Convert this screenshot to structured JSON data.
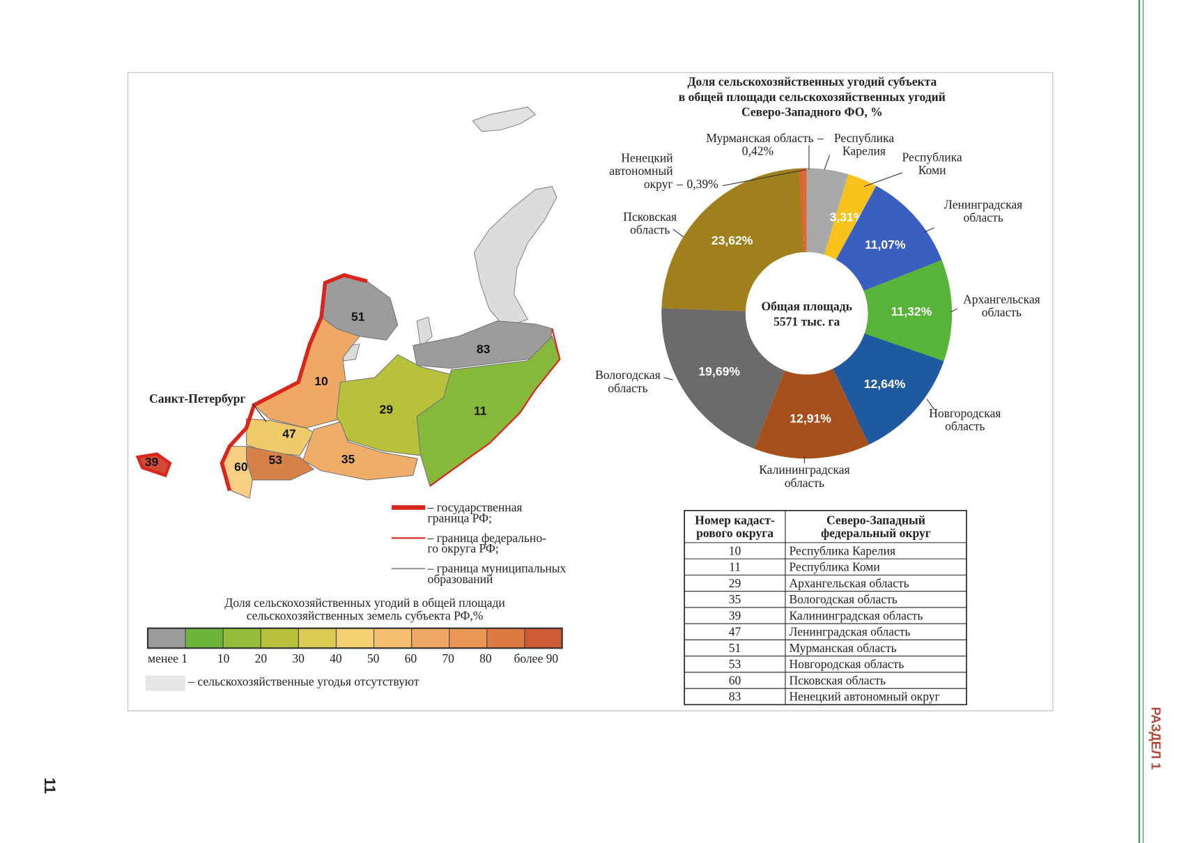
{
  "page_number": "11",
  "section_label": "РАЗДЕЛ 1",
  "map": {
    "city_label": "Санкт-Петербург",
    "regions": [
      {
        "label": "51",
        "color": "#9c9c9c"
      },
      {
        "label": "83",
        "color": "#9c9c9c"
      },
      {
        "label": "10",
        "color": "#f0a865"
      },
      {
        "label": "29",
        "color": "#b7c23a"
      },
      {
        "label": "11",
        "color": "#86b93a"
      },
      {
        "label": "47",
        "color": "#efcb6a"
      },
      {
        "label": "35",
        "color": "#f0ad68"
      },
      {
        "label": "53",
        "color": "#d6804a"
      },
      {
        "label": "60",
        "color": "#f6cf85"
      },
      {
        "label": "39",
        "color": "#d04a38"
      }
    ]
  },
  "map_legend": {
    "items": [
      "– государственная\nграница РФ;",
      "– граница федерально-\nго округа РФ;",
      "– граница муниципальных\nобразований"
    ],
    "scale_title": "Доля сельскохозяйственных угодий в общей площади\nсельскохозяйственных земель субъекта РФ,%",
    "scale_colors": [
      "#9c9c9c",
      "#6cb43a",
      "#94bd3a",
      "#b7c23a",
      "#dcca55",
      "#f3d070",
      "#f5bf70",
      "#f0a865",
      "#ec9656",
      "#df7a45",
      "#cf5a36"
    ],
    "scale_labels": [
      "менее 1",
      "10",
      "20",
      "30",
      "40",
      "50",
      "60",
      "70",
      "80",
      "более 90"
    ],
    "absent_label": "– сельскохозяйственные угодья отсутствуют"
  },
  "chart_data": {
    "type": "donut",
    "title": "Доля сельскохозяйственных угодий субъекта\nв общей площади сельскохозяйственных угодий\nСеверо-Западного ФО, %",
    "center_label": "Общая площадь\n5571 тыс. га",
    "label_separator": "–",
    "categories": [
      "Республика\nКарелия",
      "Республика\nКоми",
      "Ленинградская\nобласть",
      "Архангельская\nобласть",
      "Новгородская\nобласть",
      "Калининградская\nобласть",
      "Вологодская\nобласть",
      "Псковская\nобласть",
      "Ненецкий\nавтономный\nокруг",
      "Мурманская область"
    ],
    "values": [
      4.63,
      3.31,
      11.07,
      11.32,
      12.64,
      12.91,
      19.69,
      23.62,
      0.39,
      0.42
    ],
    "value_labels": [
      null,
      "3,31%",
      "11,07%",
      "11,32%",
      "12,64%",
      "12,91%",
      "19,69%",
      "23,62%",
      "0,39%",
      "0,42%"
    ],
    "colors": [
      "#a9a9a9",
      "#f8c21a",
      "#3a5fc0",
      "#58b339",
      "#1f5aa1",
      "#a8501c",
      "#6b6b6b",
      "#a0801c",
      "#e06030",
      "#d86a3a"
    ]
  },
  "table": {
    "header": [
      "Номер кадаст-\nрового округа",
      "Северо-Западный\nфедеральный округ"
    ],
    "rows": [
      [
        "10",
        "Республика Карелия"
      ],
      [
        "11",
        "Республика Коми"
      ],
      [
        "29",
        "Архангельская область"
      ],
      [
        "35",
        "Вологодская область"
      ],
      [
        "39",
        "Калининградская область"
      ],
      [
        "47",
        "Ленинградская область"
      ],
      [
        "51",
        "Мурманская область"
      ],
      [
        "53",
        "Новгородская область"
      ],
      [
        "60",
        "Псковская область"
      ],
      [
        "83",
        "Ненецкий автономный округ"
      ]
    ]
  }
}
